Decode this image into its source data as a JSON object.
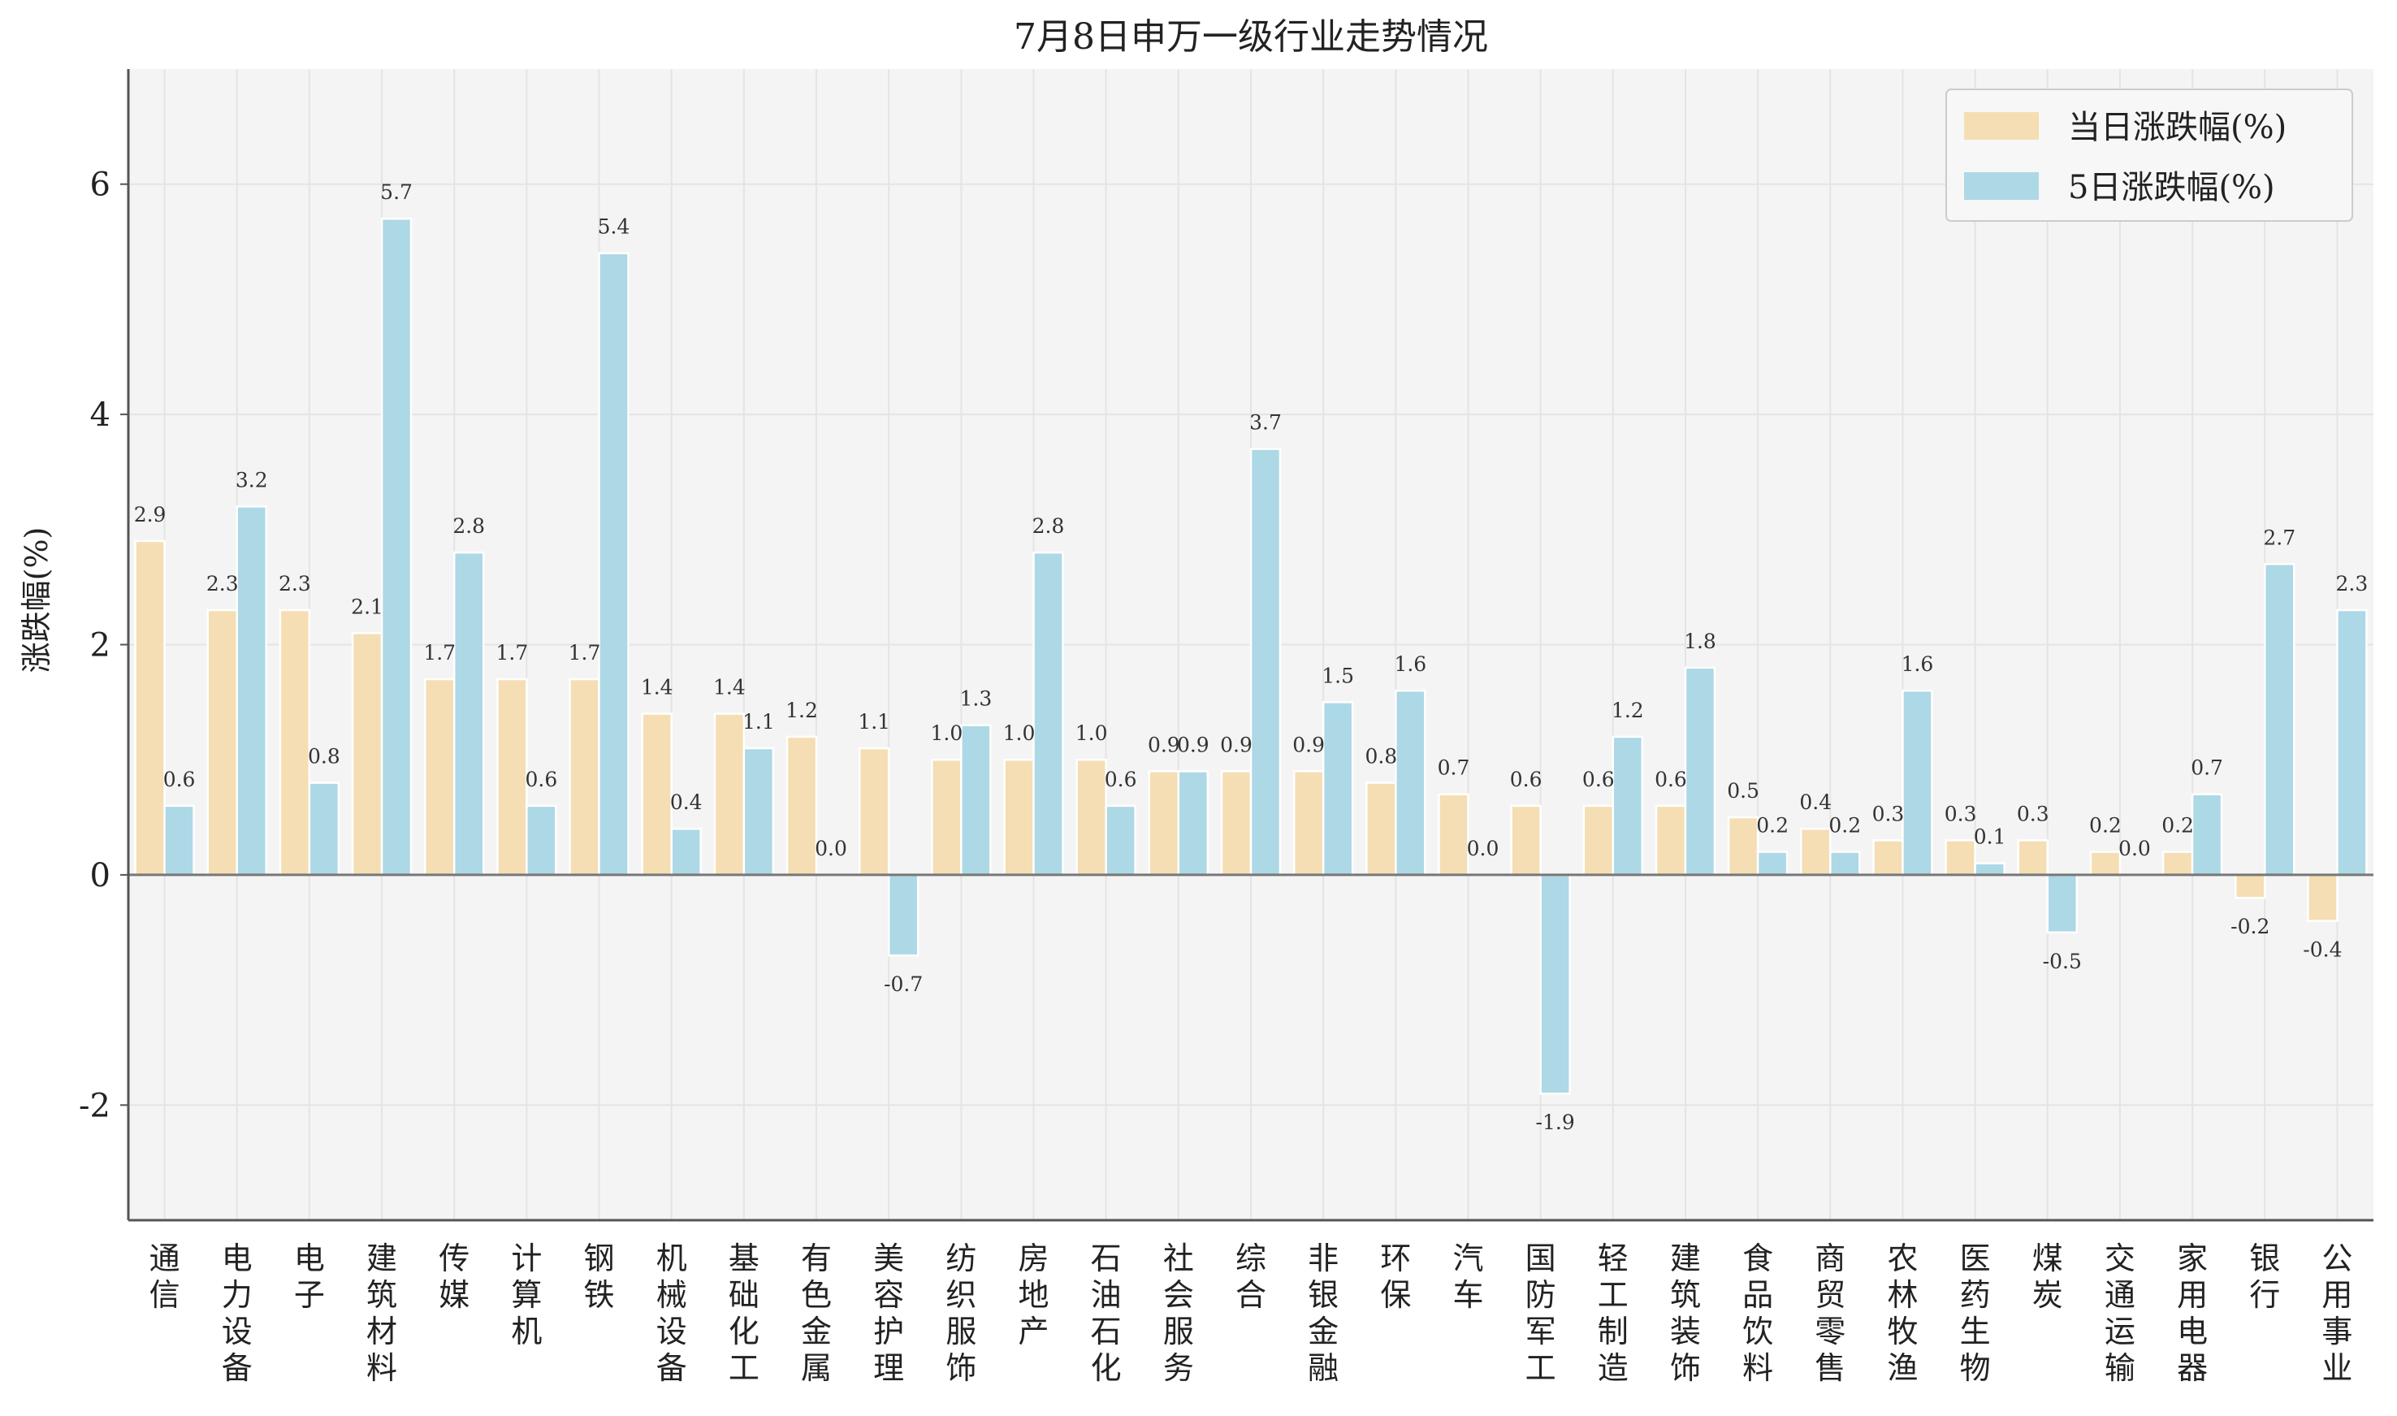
{
  "chart_data": {
    "type": "bar",
    "title": "7月8日申万一级行业走势情况",
    "xlabel": "",
    "ylabel": "涨跌幅(%)",
    "ylim": [
      -3,
      7
    ],
    "yticks": [
      -2,
      0,
      2,
      4,
      6
    ],
    "ytick_labels": [
      "-2",
      "0",
      "2",
      "4",
      "6"
    ],
    "grid": true,
    "legend_position": "top-right",
    "categories": [
      "通信",
      "电力设备",
      "电子",
      "建筑材料",
      "传媒",
      "计算机",
      "钢铁",
      "机械设备",
      "基础化工",
      "有色金属",
      "美容护理",
      "纺织服饰",
      "房地产",
      "石油石化",
      "社会服务",
      "综合",
      "非银金融",
      "环保",
      "汽车",
      "国防军工",
      "轻工制造",
      "建筑装饰",
      "食品饮料",
      "商贸零售",
      "农林牧渔",
      "医药生物",
      "煤炭",
      "交通运输",
      "家用电器",
      "银行",
      "公用事业"
    ],
    "series": [
      {
        "name": "当日涨跌幅(%)",
        "color": "#f5deb3",
        "values": [
          2.9,
          2.3,
          2.3,
          2.1,
          1.7,
          1.7,
          1.7,
          1.4,
          1.4,
          1.2,
          1.1,
          1.0,
          1.0,
          1.0,
          0.9,
          0.9,
          0.9,
          0.8,
          0.7,
          0.6,
          0.6,
          0.6,
          0.5,
          0.4,
          0.3,
          0.3,
          0.3,
          0.2,
          0.2,
          -0.2,
          -0.4
        ],
        "labels": [
          "2.9",
          "2.3",
          "2.3",
          "2.1",
          "1.7",
          "1.7",
          "1.7",
          "1.4",
          "1.4",
          "1.2",
          "1.1",
          "1.0",
          "1.0",
          "1.0",
          "0.9",
          "0.9",
          "0.9",
          "0.8",
          "0.7",
          "0.6",
          "0.6",
          "0.6",
          "0.5",
          "0.4",
          "0.3",
          "0.3",
          "0.3",
          "0.2",
          "0.2",
          "-0.2",
          "-0.4"
        ]
      },
      {
        "name": "5日涨跌幅(%)",
        "color": "#add8e6",
        "values": [
          0.6,
          3.2,
          0.8,
          5.7,
          2.8,
          0.6,
          5.4,
          0.4,
          1.1,
          0.0,
          -0.7,
          1.3,
          2.8,
          0.6,
          0.9,
          3.7,
          1.5,
          1.6,
          0.0,
          -1.9,
          1.2,
          1.8,
          0.2,
          0.2,
          1.6,
          0.1,
          -0.5,
          0.0,
          0.7,
          2.7,
          2.3
        ],
        "labels": [
          "0.6",
          "3.2",
          "0.8",
          "5.7",
          "2.8",
          "0.6",
          "5.4",
          "0.4",
          "1.1",
          "0.0",
          "-0.7",
          "1.3",
          "2.8",
          "0.6",
          "0.9",
          "3.7",
          "1.5",
          "1.6",
          "0.0",
          "-1.9",
          "1.2",
          "1.8",
          "0.2",
          "0.2",
          "1.6",
          "0.1",
          "-0.5",
          "0.0",
          "0.7",
          "2.7",
          "2.3"
        ]
      }
    ]
  }
}
